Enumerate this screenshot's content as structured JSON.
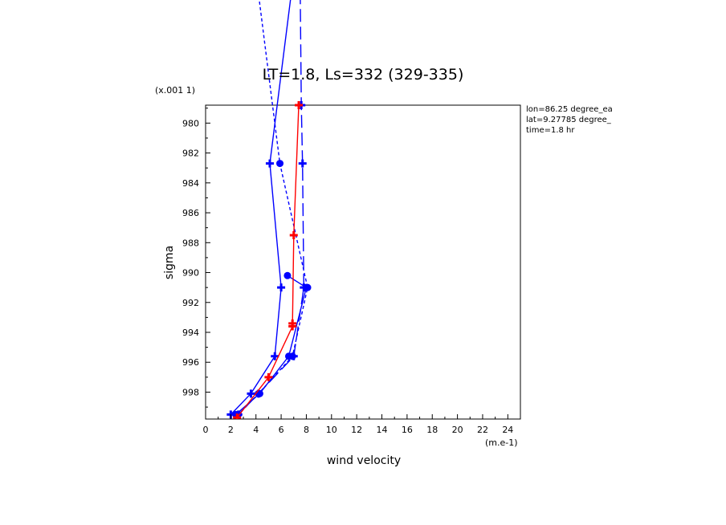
{
  "chart_data": {
    "type": "line",
    "title": "LT=1.8, Ls=332 (329-335)",
    "xlabel": "wind velocity",
    "ylabel": "sigma",
    "x_unit": "(m.e-1)",
    "y_unit": "(x.001 1)",
    "xlim": [
      0,
      25
    ],
    "ylim": [
      978.8,
      999.8
    ],
    "x_ticks": [
      "0",
      "2",
      "4",
      "6",
      "8",
      "10",
      "12",
      "14",
      "16",
      "18",
      "20",
      "22",
      "24"
    ],
    "y_ticks": [
      "980",
      "982",
      "984",
      "986",
      "988",
      "990",
      "992",
      "994",
      "996",
      "998"
    ],
    "info": [
      "lon=86.25 degree_ea",
      "lat=9.27785 degree_",
      "time=1.8 hr"
    ],
    "colors": {
      "blue": "#0000ff",
      "red": "#ff0000"
    },
    "series": [
      {
        "color": "#0000ff",
        "style": "solid",
        "marker": "plus",
        "x": [
          7.0,
          5.1,
          6.0,
          5.5,
          3.6,
          2.0
        ],
        "y": [
          970,
          982.7,
          991.0,
          995.6,
          998.1,
          999.5
        ]
      },
      {
        "color": "#0000ff",
        "style": "dashed",
        "marker": "plus",
        "x": [
          7.5,
          7.6,
          7.7,
          7.8,
          7.0,
          4.2,
          2.6
        ],
        "y": [
          970,
          978.8,
          982.7,
          991.0,
          995.6,
          998.1,
          999.5
        ]
      },
      {
        "color": "#0000ff",
        "style": "dotted",
        "marker": "circle",
        "x": [
          4.0,
          5.9,
          8.1,
          6.9,
          4.2,
          2.6
        ],
        "y": [
          970,
          982.7,
          991.0,
          995.6,
          998.1,
          999.5
        ]
      },
      {
        "color": "#0000ff",
        "style": "solid",
        "marker": "circle",
        "x": [
          6.5,
          8.0,
          6.6,
          4.3,
          2.4
        ],
        "y": [
          990.2,
          991.0,
          995.6,
          998.1,
          999.5
        ]
      },
      {
        "color": "#ff0000",
        "style": "solid",
        "marker": "plus",
        "x": [
          7.4,
          7.0,
          6.9,
          6.9,
          5.0,
          2.5
        ],
        "y": [
          978.8,
          987.5,
          993.4,
          993.6,
          997.0,
          999.7
        ]
      }
    ]
  }
}
